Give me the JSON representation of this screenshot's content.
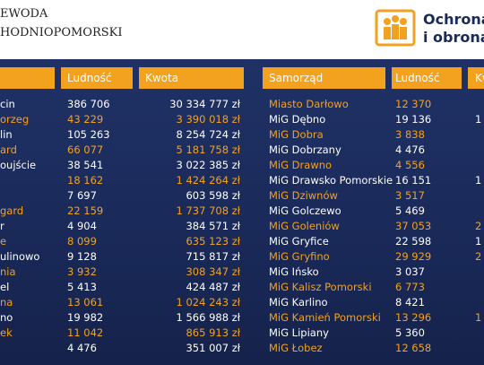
{
  "header": {
    "title_lines": [
      "EWODA",
      "HODNIOPOMORSKI"
    ],
    "logo_lines": [
      "Ochrona",
      "i obrona c"
    ]
  },
  "left_table": {
    "headers": [
      "Ludność",
      "Kwota"
    ],
    "rows": [
      [
        "cin",
        "386 706",
        "30 334 777 zł"
      ],
      [
        "orzeg",
        "43 229",
        "3 390 018 zł"
      ],
      [
        "lin",
        "105 263",
        "8 254 724 zł"
      ],
      [
        "ard",
        "66 077",
        "5 181 758 zł"
      ],
      [
        "oujście",
        "38 541",
        "3 022 385 zł"
      ],
      [
        null,
        "18 162",
        "1 424 264 zł"
      ],
      [
        null,
        "7 697",
        "603 598 zł"
      ],
      [
        "gard",
        "22 159",
        "1 737 708 zł"
      ],
      [
        "r",
        "4 904",
        "384 571 zł"
      ],
      [
        "e",
        "8 099",
        "635 123 zł"
      ],
      [
        "ulinowo",
        "9 128",
        "715 817 zł"
      ],
      [
        "nia",
        "3 932",
        "308 347 zł"
      ],
      [
        "el",
        "5 413",
        "424 487 zł"
      ],
      [
        "na",
        "13 061",
        "1 024 243 zł"
      ],
      [
        "no",
        "19 982",
        "1 566 988 zł"
      ],
      [
        "ek",
        "11 042",
        "865 913 zł"
      ],
      [
        null,
        "4 476",
        "351 007 zł"
      ]
    ]
  },
  "right_table": {
    "headers": [
      "Samorząd",
      "Ludność",
      "Kw"
    ],
    "rows": [
      [
        "Miasto Darłowo",
        "12 370",
        null
      ],
      [
        "MiG Dębno",
        "19 136",
        "1"
      ],
      [
        "MiG Dobra",
        "3 838",
        null
      ],
      [
        "MiG Dobrzany",
        "4 476",
        null
      ],
      [
        "MiG Drawno",
        "4 556",
        null
      ],
      [
        "MiG Drawsko Pomorskie",
        "16 151",
        "1"
      ],
      [
        "MiG Dziwnów",
        "3 517",
        null
      ],
      [
        "MiG Golczewo",
        "5 469",
        null
      ],
      [
        "MiG Goleniów",
        "37 053",
        "2"
      ],
      [
        "MiG Gryfice",
        "22 598",
        "1"
      ],
      [
        "MiG Gryfino",
        "29 929",
        "2"
      ],
      [
        "MiG Ińsko",
        "3 037",
        null
      ],
      [
        "MiG Kalisz Pomorski",
        "6 773",
        null
      ],
      [
        "MiG Karlino",
        "8 421",
        null
      ],
      [
        "MiG Kamień Pomorski",
        "13 296",
        "1"
      ],
      [
        "MiG Lipiany",
        "5 360",
        null
      ],
      [
        "MiG Łobez",
        "12 658",
        null
      ]
    ]
  }
}
